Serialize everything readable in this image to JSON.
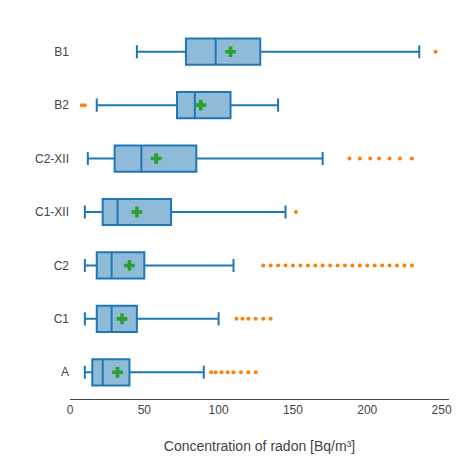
{
  "chart_data": {
    "type": "box",
    "orientation": "horizontal",
    "categories": [
      "A",
      "C1",
      "C2",
      "C1-XII",
      "C2-XII",
      "B2",
      "B1"
    ],
    "whisker_low": [
      10,
      10,
      10,
      10,
      12,
      18,
      45
    ],
    "q1": [
      15,
      18,
      18,
      22,
      30,
      72,
      78
    ],
    "median": [
      22,
      28,
      28,
      32,
      48,
      84,
      98
    ],
    "q3": [
      40,
      45,
      50,
      68,
      85,
      108,
      128
    ],
    "whisker_high": [
      90,
      100,
      110,
      145,
      170,
      140,
      235
    ],
    "fliers": [
      [
        95,
        98,
        102,
        106,
        110,
        115,
        120,
        125
      ],
      [
        112,
        116,
        120,
        125,
        130,
        135
      ],
      [
        130,
        135,
        140,
        145,
        150,
        155,
        160,
        165,
        170,
        175,
        180,
        185,
        190,
        195,
        200,
        205,
        210,
        215,
        220,
        225,
        230
      ],
      [
        152
      ],
      [
        188,
        195,
        202,
        208,
        215,
        222,
        230
      ],
      [
        8,
        10
      ],
      [
        246
      ]
    ],
    "means": [
      32,
      35,
      40,
      45,
      58,
      88,
      108
    ],
    "xlabel": "Concentration of radon [Bq/m³]",
    "xlim": [
      0,
      255
    ],
    "xticks": [
      0,
      50,
      100,
      150,
      200,
      250
    ],
    "grid": false
  }
}
